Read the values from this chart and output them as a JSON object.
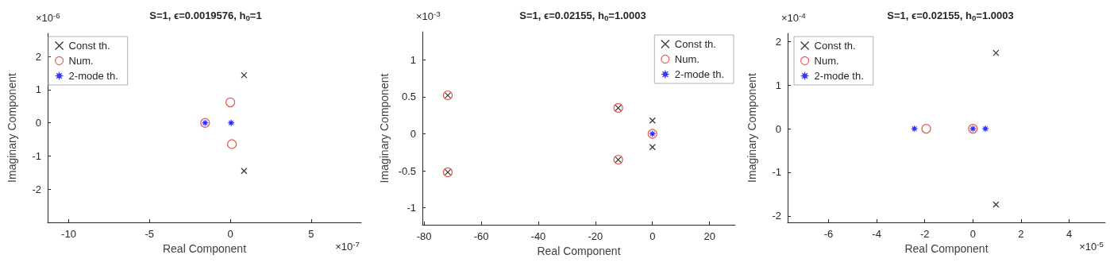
{
  "chart_data": [
    {
      "type": "scatter",
      "title": "S=1, ϵ=0.0019576, h$_{0}$=1",
      "xlabel": "Real Component",
      "ylabel": "Imaginary Component",
      "annotations": [
        "×10$^{-6}$",
        "×10$^{-7}$"
      ],
      "xlim": [
        -11.3,
        8.1
      ],
      "xticks": [
        -10,
        -5,
        0,
        5
      ],
      "ylim": [
        -3,
        2.7
      ],
      "yticks": [
        -2,
        -1,
        0,
        1,
        2
      ],
      "legend": "top left",
      "series": [
        {
          "name": "Const th.",
          "color": "#000000",
          "marker": "cross",
          "x": [
            0.85,
            0.85
          ],
          "values": [
            1.44,
            -1.45
          ]
        },
        {
          "name": "Num.",
          "color": "#e0342c",
          "marker": "circle",
          "x": [
            -1.56,
            0,
            0.1
          ],
          "values": [
            0,
            0.62,
            -0.64
          ]
        },
        {
          "name": "2-mode th.",
          "color": "#0000ff",
          "marker": "star",
          "x": [
            -1.56,
            0.05
          ],
          "values": [
            0,
            0
          ]
        }
      ]
    },
    {
      "type": "scatter",
      "title": "S=1, ϵ=0.02155, h$_{0}$=1.0003",
      "xlabel": "Real Component",
      "ylabel": "Imaginary Component",
      "annotations": [
        "×10$^{-3}$"
      ],
      "xlim": [
        -80.6,
        29
      ],
      "xticks": [
        -80,
        -60,
        -40,
        -20,
        0,
        20
      ],
      "ylim": [
        -1.23,
        1.38
      ],
      "yticks": [
        -1,
        -0.5,
        0,
        0.5,
        1
      ],
      "legend": "top right",
      "series": [
        {
          "name": "Const th.",
          "color": "#000000",
          "marker": "cross",
          "x": [
            -71.7,
            -71.7,
            -12,
            -12,
            0,
            0
          ],
          "values": [
            0.52,
            -0.52,
            0.35,
            -0.35,
            0.18,
            -0.18
          ]
        },
        {
          "name": "Num.",
          "color": "#e0342c",
          "marker": "circle",
          "x": [
            -71.7,
            -71.7,
            -12,
            -12,
            0
          ],
          "values": [
            0.52,
            -0.52,
            0.35,
            -0.35,
            0
          ]
        },
        {
          "name": "2-mode th.",
          "color": "#0000ff",
          "marker": "star",
          "x": [
            0
          ],
          "values": [
            0
          ]
        }
      ]
    },
    {
      "type": "scatter",
      "title": "S=1, ϵ=0.02155, h$_{0}$=1.0003",
      "xlabel": "Real Component",
      "ylabel": "Imaginary Component",
      "annotations": [
        "×10$^{-4}$",
        "×10$^{-5}$"
      ],
      "xlim": [
        -7.7,
        5.5
      ],
      "xticks": [
        -6,
        -4,
        -2,
        0,
        2,
        4
      ],
      "ylim": [
        -2.15,
        2.19
      ],
      "yticks": [
        -2,
        -1,
        0,
        1,
        2
      ],
      "legend": "top left",
      "series": [
        {
          "name": "Const th.",
          "color": "#000000",
          "marker": "cross",
          "x": [
            0.96,
            0.96
          ],
          "values": [
            1.74,
            -1.74
          ]
        },
        {
          "name": "Num.",
          "color": "#e0342c",
          "marker": "circle",
          "x": [
            -1.94,
            0
          ],
          "values": [
            0,
            0
          ]
        },
        {
          "name": "2-mode th.",
          "color": "#0000ff",
          "marker": "star",
          "x": [
            -2.43,
            0,
            0.52
          ],
          "values": [
            0,
            0,
            0
          ]
        }
      ]
    }
  ]
}
